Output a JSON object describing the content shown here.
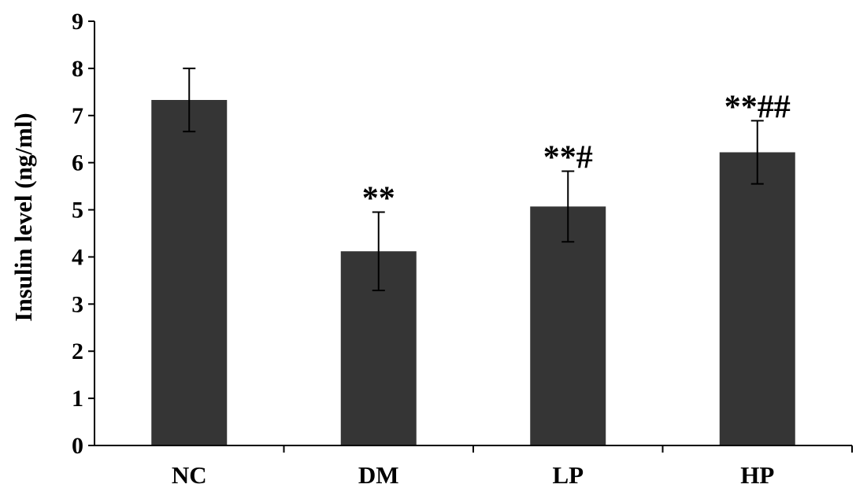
{
  "chart_data": {
    "type": "bar",
    "categories": [
      "NC",
      "DM",
      "LP",
      "HP"
    ],
    "values": [
      7.33,
      4.12,
      5.07,
      6.22
    ],
    "errors": [
      0.67,
      0.83,
      0.75,
      0.67
    ],
    "annotations": [
      "",
      "**",
      "**#",
      "**##"
    ],
    "xlabel": "",
    "ylabel": "Insulin level (ng/ml)",
    "ylim": [
      0,
      9
    ],
    "yticks": [
      "0",
      "1",
      "2",
      "3",
      "4",
      "5",
      "6",
      "7",
      "8",
      "9"
    ],
    "grid": false,
    "colors": {
      "bar": "#353535",
      "axis": "#000000"
    }
  }
}
